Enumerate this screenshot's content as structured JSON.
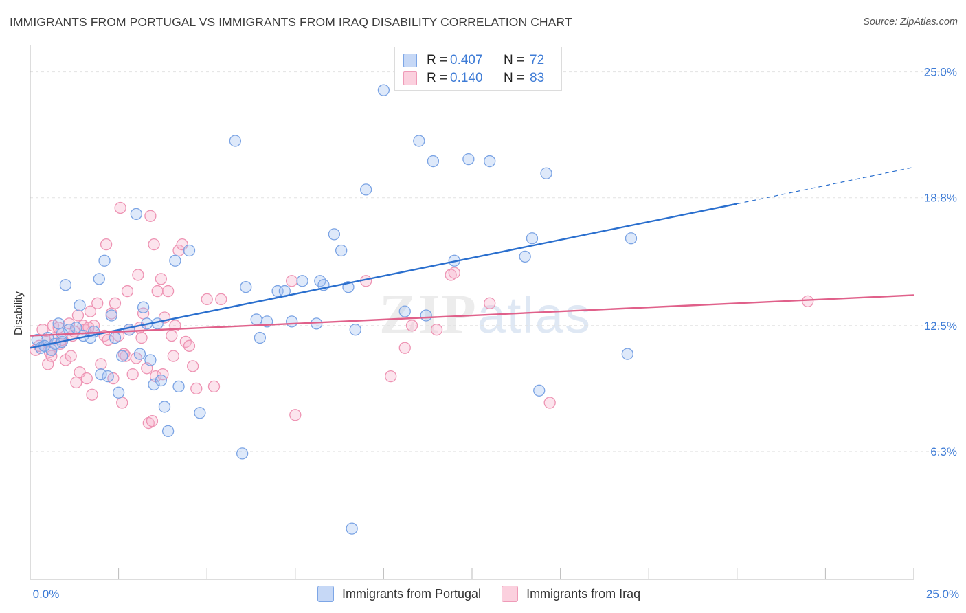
{
  "title": "IMMIGRANTS FROM PORTUGAL VS IMMIGRANTS FROM IRAQ DISABILITY CORRELATION CHART",
  "source": "Source: ZipAtlas.com",
  "watermark": {
    "zip": "ZIP",
    "atlas": "atlas"
  },
  "legend": {
    "rows": [
      {
        "r_label": "R =",
        "r_value": "0.407",
        "n_label": "N =",
        "n_value": "72"
      },
      {
        "r_label": "R =",
        "r_value": "0.140",
        "n_label": "N =",
        "n_value": "83"
      }
    ]
  },
  "chart_data": {
    "type": "scatter",
    "title": "IMMIGRANTS FROM PORTUGAL VS IMMIGRANTS FROM IRAQ DISABILITY CORRELATION CHART",
    "xlabel": "",
    "ylabel": "Disability",
    "xlim": [
      0,
      25
    ],
    "ylim": [
      0,
      25.9
    ],
    "x_tick_labels": [
      "0.0%",
      "25.0%"
    ],
    "y_tick_labels": [
      "6.3%",
      "12.5%",
      "18.8%",
      "25.0%"
    ],
    "y_ticks": [
      6.3,
      12.5,
      18.8,
      25.0
    ],
    "grid": true,
    "legend_position": "top-center",
    "colors": {
      "portugal": "#6f9ee6",
      "portugal_line": "#2a6fce",
      "iraq": "#ef8fb0",
      "iraq_line": "#e0608a",
      "tick_text": "#3d7bd6"
    },
    "series": [
      {
        "name": "Immigrants from Portugal",
        "r": 0.407,
        "n": 72,
        "trend": {
          "x0": 0,
          "y0": 11.4,
          "x1": 20,
          "y1": 18.5,
          "dash_to_x": 25,
          "dash_to_y": 20.3
        },
        "points": [
          [
            0.2,
            11.8
          ],
          [
            0.3,
            11.4
          ],
          [
            0.5,
            11.9
          ],
          [
            0.6,
            11.3
          ],
          [
            0.7,
            11.6
          ],
          [
            0.8,
            12.6
          ],
          [
            0.9,
            11.7
          ],
          [
            1.0,
            14.5
          ],
          [
            1.1,
            12.3
          ],
          [
            1.3,
            12.4
          ],
          [
            1.4,
            13.5
          ],
          [
            1.5,
            12.0
          ],
          [
            1.7,
            11.9
          ],
          [
            1.8,
            12.2
          ],
          [
            1.95,
            14.8
          ],
          [
            2.1,
            15.7
          ],
          [
            2.2,
            10.0
          ],
          [
            2.3,
            13.0
          ],
          [
            2.4,
            11.9
          ],
          [
            2.5,
            9.2
          ],
          [
            2.6,
            11.0
          ],
          [
            2.8,
            12.3
          ],
          [
            3.0,
            18.0
          ],
          [
            3.1,
            11.1
          ],
          [
            3.2,
            13.4
          ],
          [
            3.3,
            12.6
          ],
          [
            3.4,
            10.8
          ],
          [
            3.5,
            9.6
          ],
          [
            3.6,
            12.6
          ],
          [
            3.8,
            8.5
          ],
          [
            3.9,
            7.3
          ],
          [
            4.1,
            15.7
          ],
          [
            4.2,
            9.5
          ],
          [
            4.5,
            16.2
          ],
          [
            4.8,
            8.2
          ],
          [
            5.8,
            21.6
          ],
          [
            6.0,
            6.2
          ],
          [
            6.1,
            14.4
          ],
          [
            6.4,
            12.8
          ],
          [
            6.5,
            11.9
          ],
          [
            6.7,
            12.7
          ],
          [
            7.0,
            14.2
          ],
          [
            7.2,
            14.2
          ],
          [
            7.4,
            12.7
          ],
          [
            7.7,
            14.7
          ],
          [
            8.1,
            12.6
          ],
          [
            8.2,
            14.7
          ],
          [
            8.3,
            14.5
          ],
          [
            8.6,
            17.0
          ],
          [
            8.8,
            16.2
          ],
          [
            9.0,
            14.4
          ],
          [
            9.1,
            2.5
          ],
          [
            9.2,
            12.3
          ],
          [
            9.5,
            19.2
          ],
          [
            10.0,
            24.1
          ],
          [
            10.6,
            13.2
          ],
          [
            11.0,
            21.6
          ],
          [
            11.2,
            13.0
          ],
          [
            11.4,
            20.6
          ],
          [
            12.0,
            15.7
          ],
          [
            12.4,
            20.7
          ],
          [
            13.0,
            20.6
          ],
          [
            14.0,
            15.9
          ],
          [
            14.2,
            16.8
          ],
          [
            14.4,
            9.3
          ],
          [
            14.6,
            20.0
          ],
          [
            16.9,
            11.1
          ],
          [
            17.0,
            16.8
          ],
          [
            0.4,
            11.5
          ],
          [
            2.0,
            10.1
          ],
          [
            3.7,
            9.8
          ],
          [
            0.9,
            12.1
          ]
        ]
      },
      {
        "name": "Immigrants from Iraq",
        "r": 0.14,
        "n": 83,
        "trend": {
          "x0": 0,
          "y0": 12.0,
          "x1": 25,
          "y1": 14.0
        },
        "points": [
          [
            0.15,
            11.3
          ],
          [
            0.25,
            11.5
          ],
          [
            0.35,
            12.3
          ],
          [
            0.45,
            11.7
          ],
          [
            0.5,
            10.6
          ],
          [
            0.6,
            11.0
          ],
          [
            0.65,
            12.5
          ],
          [
            0.7,
            11.9
          ],
          [
            0.8,
            12.4
          ],
          [
            0.85,
            11.6
          ],
          [
            0.9,
            11.8
          ],
          [
            1.0,
            10.8
          ],
          [
            1.1,
            12.6
          ],
          [
            1.15,
            11.0
          ],
          [
            1.2,
            12.0
          ],
          [
            1.3,
            9.7
          ],
          [
            1.35,
            13.0
          ],
          [
            1.4,
            10.2
          ],
          [
            1.5,
            12.5
          ],
          [
            1.55,
            12.3
          ],
          [
            1.6,
            9.9
          ],
          [
            1.7,
            13.2
          ],
          [
            1.75,
            9.1
          ],
          [
            1.8,
            12.5
          ],
          [
            1.9,
            13.6
          ],
          [
            2.0,
            10.6
          ],
          [
            2.1,
            12.0
          ],
          [
            2.15,
            16.5
          ],
          [
            2.2,
            11.8
          ],
          [
            2.3,
            13.1
          ],
          [
            2.35,
            9.9
          ],
          [
            2.4,
            13.6
          ],
          [
            2.5,
            12.0
          ],
          [
            2.55,
            18.3
          ],
          [
            2.6,
            8.7
          ],
          [
            2.7,
            11.0
          ],
          [
            2.75,
            14.2
          ],
          [
            2.8,
            12.3
          ],
          [
            2.9,
            10.1
          ],
          [
            3.0,
            10.9
          ],
          [
            3.05,
            15.0
          ],
          [
            3.1,
            12.4
          ],
          [
            3.15,
            11.9
          ],
          [
            3.2,
            13.1
          ],
          [
            3.3,
            10.4
          ],
          [
            3.35,
            7.7
          ],
          [
            3.4,
            17.9
          ],
          [
            3.5,
            16.5
          ],
          [
            3.55,
            10.0
          ],
          [
            3.6,
            14.2
          ],
          [
            3.7,
            14.8
          ],
          [
            3.75,
            10.1
          ],
          [
            3.8,
            12.9
          ],
          [
            3.9,
            14.2
          ],
          [
            4.0,
            12.0
          ],
          [
            4.1,
            12.5
          ],
          [
            4.2,
            16.2
          ],
          [
            4.3,
            16.5
          ],
          [
            4.4,
            11.7
          ],
          [
            4.5,
            11.5
          ],
          [
            4.6,
            10.5
          ],
          [
            4.7,
            9.4
          ],
          [
            5.0,
            13.8
          ],
          [
            5.2,
            9.5
          ],
          [
            5.4,
            13.8
          ],
          [
            7.4,
            14.7
          ],
          [
            7.5,
            8.1
          ],
          [
            9.5,
            14.7
          ],
          [
            10.2,
            10.0
          ],
          [
            10.6,
            11.4
          ],
          [
            10.8,
            12.5
          ],
          [
            11.5,
            12.3
          ],
          [
            11.9,
            15.0
          ],
          [
            12.0,
            15.1
          ],
          [
            13.0,
            13.6
          ],
          [
            14.7,
            8.7
          ],
          [
            22.0,
            13.7
          ],
          [
            1.25,
            12.2
          ],
          [
            0.55,
            11.2
          ],
          [
            2.65,
            11.1
          ],
          [
            3.45,
            7.8
          ],
          [
            4.05,
            11.0
          ],
          [
            1.65,
            12.4
          ]
        ]
      }
    ]
  }
}
